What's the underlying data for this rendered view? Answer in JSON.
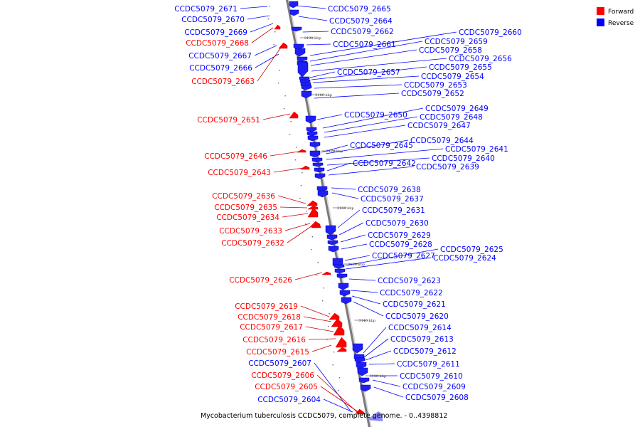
{
  "legend": {
    "forward": {
      "label": "Forward",
      "color": "#ff0000"
    },
    "reverse": {
      "label": "Reverse",
      "color": "#0000ff"
    }
  },
  "caption": "Mycobacterium tuberculosis CCDC5079, complete genome. - 0..4398812",
  "ticks": [
    "3190 kbp",
    "3180 kbp",
    "3170 kbp",
    "3160 kbp",
    "3150 kbp",
    "3140 kbp",
    "3130 kbp"
  ],
  "forward_genes": [
    "CCDC5079_2671",
    "CCDC5079_2670",
    "CCDC5079_2669",
    "CCDC5079_2667",
    "CCDC5079_2666",
    "CCDC5079_2607",
    "CCDC5079_2604"
  ],
  "forward_red_genes": [
    "CCDC5079_2668",
    "CCDC5079_2663",
    "CCDC5079_2651",
    "CCDC5079_2646",
    "CCDC5079_2643",
    "CCDC5079_2636",
    "CCDC5079_2635",
    "CCDC5079_2634",
    "CCDC5079_2633",
    "CCDC5079_2632",
    "CCDC5079_2626",
    "CCDC5079_2619",
    "CCDC5079_2618",
    "CCDC5079_2617",
    "CCDC5079_2616",
    "CCDC5079_2615",
    "CCDC5079_2606",
    "CCDC5079_2605"
  ],
  "reverse_genes": [
    "CCDC5079_2665",
    "CCDC5079_2664",
    "CCDC5079_2662",
    "CCDC5079_2661",
    "CCDC5079_2660",
    "CCDC5079_2659",
    "CCDC5079_2658",
    "CCDC5079_2656",
    "CCDC5079_2657",
    "CCDC5079_2655",
    "CCDC5079_2654",
    "CCDC5079_2653",
    "CCDC5079_2652",
    "CCDC5079_2650",
    "CCDC5079_2649",
    "CCDC5079_2648",
    "CCDC5079_2647",
    "CCDC5079_2645",
    "CCDC5079_2644",
    "CCDC5079_2641",
    "CCDC5079_2640",
    "CCDC5079_2642",
    "CCDC5079_2639",
    "CCDC5079_2638",
    "CCDC5079_2637",
    "CCDC5079_2631",
    "CCDC5079_2630",
    "CCDC5079_2629",
    "CCDC5079_2628",
    "CCDC5079_2627",
    "CCDC5079_2625",
    "CCDC5079_2624",
    "CCDC5079_2623",
    "CCDC5079_2622",
    "CCDC5079_2621",
    "CCDC5079_2620",
    "CCDC5079_2614",
    "CCDC5079_2613",
    "CCDC5079_2612",
    "CCDC5079_2611",
    "CCDC5079_2610",
    "CCDC5079_2609",
    "CCDC5079_2608"
  ]
}
